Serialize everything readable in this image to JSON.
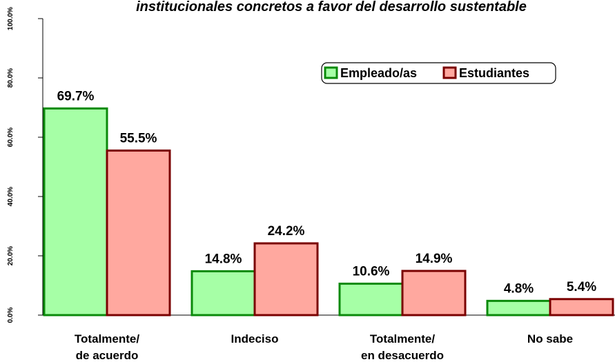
{
  "chart_data": {
    "type": "bar",
    "title": "institucionales concretos a favor del desarrollo sustentable",
    "categories": [
      [
        "Totalmente/",
        "de acuerdo"
      ],
      [
        "Indeciso"
      ],
      [
        "Totalmente/",
        "en desacuerdo"
      ],
      [
        "No sabe"
      ]
    ],
    "series": [
      {
        "name": "Empleado/as",
        "color": "#a6ffa6",
        "edge": "#0a8a0a",
        "values": [
          69.7,
          14.8,
          10.6,
          4.8
        ],
        "value_labels": [
          "69.7%",
          "14.8%",
          "10.6%",
          "4.8%"
        ]
      },
      {
        "name": "Estudiantes",
        "color": "#ffa89f",
        "edge": "#7a0000",
        "values": [
          55.5,
          24.2,
          14.9,
          5.4
        ],
        "value_labels": [
          "55.5%",
          "24.2%",
          "14.9%",
          "5.4%"
        ]
      }
    ],
    "ylim": [
      0,
      100
    ],
    "yticks": [
      {
        "value": 0,
        "label": "0.0%"
      },
      {
        "value": 20,
        "label": "20.0%"
      },
      {
        "value": 40,
        "label": "40.0%"
      },
      {
        "value": 60,
        "label": "60.0%"
      },
      {
        "value": 80,
        "label": "80.0%"
      },
      {
        "value": 100,
        "label": "100.0%"
      }
    ],
    "grid": false
  }
}
